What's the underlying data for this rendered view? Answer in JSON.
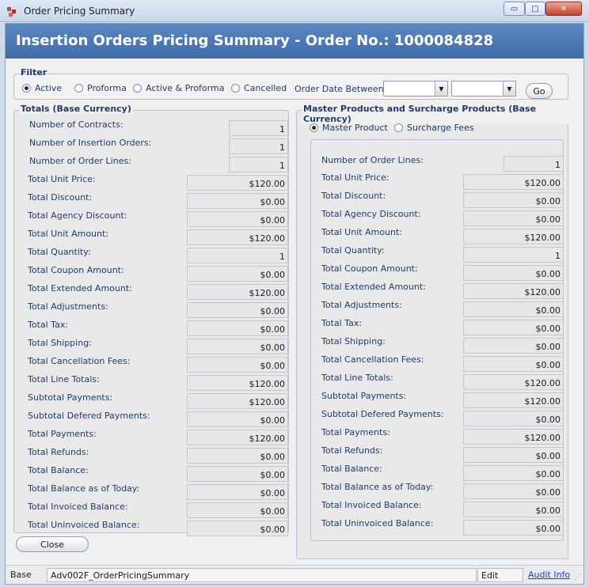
{
  "window": {
    "title": "Order Pricing Summary",
    "min": "▭",
    "max": "□",
    "close": "✕"
  },
  "header": {
    "title": "Insertion Orders Pricing Summary - Order No.: 1000084828"
  },
  "filter": {
    "title": "Filter",
    "options": [
      "Active",
      "Proforma",
      "Active & Proforma",
      "Cancelled"
    ],
    "selected": "Active",
    "date_label": "Order Date Between",
    "date_from": "",
    "date_to": "",
    "go_label": "Go"
  },
  "totals": {
    "title": "Totals (Base Currency)",
    "counts": [
      {
        "label": "Number of Contracts:",
        "value": "1"
      },
      {
        "label": "Number of Insertion Orders:",
        "value": "1"
      },
      {
        "label": "Number of Order Lines:",
        "value": "1"
      }
    ],
    "rows": [
      {
        "label": "Total Unit Price:",
        "value": "$120.00"
      },
      {
        "label": "Total Discount:",
        "value": "$0.00"
      },
      {
        "label": "Total Agency Discount:",
        "value": "$0.00"
      },
      {
        "label": "Total Unit Amount:",
        "value": "$120.00"
      },
      {
        "label": "Total Quantity:",
        "value": "1"
      },
      {
        "label": "Total Coupon Amount:",
        "value": "$0.00"
      },
      {
        "label": "Total Extended Amount:",
        "value": "$120.00"
      },
      {
        "label": "Total Adjustments:",
        "value": "$0.00"
      },
      {
        "label": "Total Tax:",
        "value": "$0.00"
      },
      {
        "label": "Total Shipping:",
        "value": "$0.00"
      },
      {
        "label": "Total Cancellation Fees:",
        "value": "$0.00"
      },
      {
        "label": "Total Line Totals:",
        "value": "$120.00"
      },
      {
        "label": "Subtotal Payments:",
        "value": "$120.00"
      },
      {
        "label": "Subtotal Defered Payments:",
        "value": "$0.00"
      },
      {
        "label": "Total Payments:",
        "value": "$120.00"
      },
      {
        "label": "Total Refunds:",
        "value": "$0.00"
      },
      {
        "label": "Total Balance:",
        "value": "$0.00"
      },
      {
        "label": "Total Balance as of Today:",
        "value": "$0.00"
      },
      {
        "label": "Total Invoiced Balance:",
        "value": "$0.00"
      },
      {
        "label": "Total Uninvoiced Balance:",
        "value": "$0.00"
      }
    ]
  },
  "master": {
    "title": "Master Products and Surcharge Products (Base Currency)",
    "options": [
      "Master Product",
      "Surcharge Fees"
    ],
    "selected": "Master Product",
    "order_lines": {
      "label": "Number of Order Lines:",
      "value": "1"
    },
    "rows": [
      {
        "label": "Total Unit Price:",
        "value": "$120.00"
      },
      {
        "label": "Total Discount:",
        "value": "$0.00"
      },
      {
        "label": "Total Agency Discount:",
        "value": "$0.00"
      },
      {
        "label": "Total Unit Amount:",
        "value": "$120.00"
      },
      {
        "label": "Total Quantity:",
        "value": "1"
      },
      {
        "label": "Total Coupon Amount:",
        "value": "$0.00"
      },
      {
        "label": "Total Extended Amount:",
        "value": "$120.00"
      },
      {
        "label": "Total Adjustments:",
        "value": "$0.00"
      },
      {
        "label": "Total Tax:",
        "value": "$0.00"
      },
      {
        "label": "Total Shipping:",
        "value": "$0.00"
      },
      {
        "label": "Total Cancellation Fees:",
        "value": "$0.00"
      },
      {
        "label": "Total Line Totals:",
        "value": "$120.00"
      },
      {
        "label": "Subtotal Payments:",
        "value": "$120.00"
      },
      {
        "label": "Subtotal Defered Payments:",
        "value": "$0.00"
      },
      {
        "label": "Total Payments:",
        "value": "$120.00"
      },
      {
        "label": "Total Refunds:",
        "value": "$0.00"
      },
      {
        "label": "Total Balance:",
        "value": "$0.00"
      },
      {
        "label": "Total Balance as of Today:",
        "value": "$0.00"
      },
      {
        "label": "Total Invoiced Balance:",
        "value": "$0.00"
      },
      {
        "label": "Total Uninvoiced Balance:",
        "value": "$0.00"
      }
    ]
  },
  "close_label": "Close",
  "status": {
    "base": "Base",
    "form": "Adv002F_OrderPricingSummary",
    "mode": "Edit",
    "audit": "Audit Info",
    "grip": "⋰"
  },
  "colors": {
    "header": "#4a76b4",
    "label_text": "#1f3c6a",
    "link": "#1a3fd0"
  }
}
